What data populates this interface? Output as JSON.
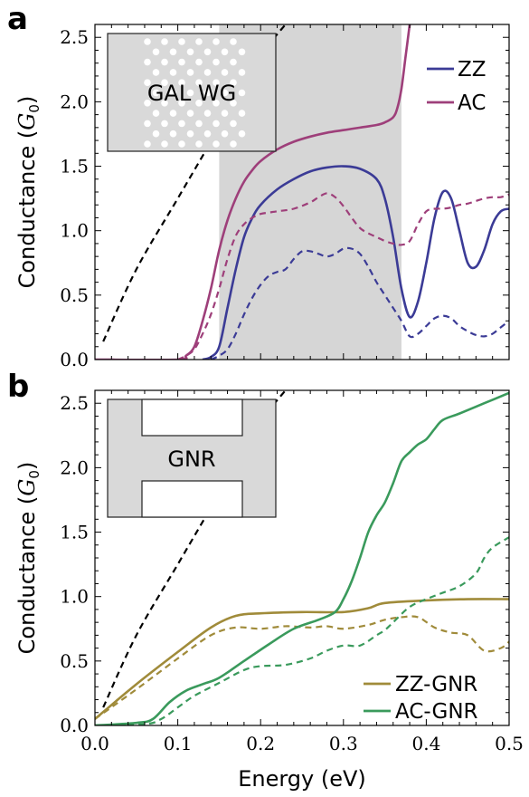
{
  "chart_data": [
    {
      "panel_label": "a",
      "type": "line",
      "xlim": [
        0,
        0.5
      ],
      "ylim": [
        0,
        2.6
      ],
      "ylabel": "Conductance (G0)",
      "ylabel_prefix": "Conductance (",
      "ylabel_symbol": "G",
      "ylabel_subscript": "0",
      "ylabel_suffix": ")",
      "xticks": [
        "0.0",
        "0.1",
        "0.2",
        "0.3",
        "0.4",
        "0.5"
      ],
      "yticks": [
        "0.0",
        "0.5",
        "1.0",
        "1.5",
        "2.0",
        "2.5"
      ],
      "shaded_region": [
        0.15,
        0.37
      ],
      "inset_label": "GAL WG",
      "legend": [
        "ZZ",
        "AC"
      ],
      "series": [
        {
          "name": "ZZ",
          "color": "#3b3b96",
          "style": "solid",
          "x": [
            0.13,
            0.14,
            0.15,
            0.16,
            0.17,
            0.18,
            0.19,
            0.2,
            0.22,
            0.24,
            0.26,
            0.28,
            0.3,
            0.32,
            0.34,
            0.35,
            0.36,
            0.37,
            0.38,
            0.39,
            0.4,
            0.41,
            0.42,
            0.43,
            0.44,
            0.45,
            0.46,
            0.47,
            0.48,
            0.49,
            0.5
          ],
          "y": [
            0.0,
            0.02,
            0.1,
            0.4,
            0.7,
            0.95,
            1.1,
            1.2,
            1.32,
            1.4,
            1.46,
            1.49,
            1.5,
            1.48,
            1.4,
            1.25,
            0.95,
            0.55,
            0.33,
            0.45,
            0.75,
            1.1,
            1.3,
            1.25,
            1.0,
            0.75,
            0.72,
            0.85,
            1.05,
            1.15,
            1.17
          ]
        },
        {
          "name": "ZZ (dashed)",
          "color": "#3b3b96",
          "style": "dashed",
          "x": [
            0.14,
            0.15,
            0.16,
            0.17,
            0.18,
            0.19,
            0.2,
            0.21,
            0.22,
            0.23,
            0.24,
            0.25,
            0.26,
            0.27,
            0.28,
            0.29,
            0.3,
            0.31,
            0.32,
            0.33,
            0.34,
            0.35,
            0.36,
            0.37,
            0.38,
            0.39,
            0.4,
            0.41,
            0.42,
            0.43,
            0.44,
            0.45,
            0.46,
            0.47,
            0.48,
            0.49,
            0.5
          ],
          "y": [
            0.0,
            0.03,
            0.08,
            0.2,
            0.35,
            0.48,
            0.58,
            0.65,
            0.68,
            0.7,
            0.78,
            0.84,
            0.84,
            0.82,
            0.8,
            0.82,
            0.86,
            0.86,
            0.82,
            0.72,
            0.6,
            0.5,
            0.4,
            0.3,
            0.18,
            0.2,
            0.26,
            0.32,
            0.34,
            0.32,
            0.26,
            0.22,
            0.19,
            0.18,
            0.2,
            0.25,
            0.3
          ]
        },
        {
          "name": "AC",
          "color": "#9e3f7a",
          "style": "solid",
          "x": [
            0.0,
            0.1,
            0.11,
            0.12,
            0.13,
            0.14,
            0.15,
            0.16,
            0.17,
            0.18,
            0.19,
            0.2,
            0.22,
            0.24,
            0.26,
            0.28,
            0.3,
            0.32,
            0.34,
            0.35,
            0.36,
            0.365,
            0.37,
            0.375,
            0.38
          ],
          "y": [
            0.0,
            0.0,
            0.03,
            0.1,
            0.3,
            0.55,
            0.85,
            1.08,
            1.25,
            1.38,
            1.47,
            1.54,
            1.63,
            1.69,
            1.73,
            1.76,
            1.78,
            1.8,
            1.82,
            1.84,
            1.88,
            1.95,
            2.1,
            2.35,
            2.6
          ]
        },
        {
          "name": "AC (dashed)",
          "color": "#9e3f7a",
          "style": "dashed",
          "x": [
            0.1,
            0.11,
            0.12,
            0.13,
            0.14,
            0.15,
            0.16,
            0.17,
            0.18,
            0.19,
            0.2,
            0.22,
            0.24,
            0.26,
            0.27,
            0.28,
            0.29,
            0.3,
            0.31,
            0.32,
            0.33,
            0.34,
            0.35,
            0.36,
            0.37,
            0.38,
            0.39,
            0.4,
            0.41,
            0.42,
            0.43,
            0.44,
            0.45,
            0.46,
            0.47,
            0.48,
            0.49,
            0.5
          ],
          "y": [
            0.0,
            0.03,
            0.08,
            0.2,
            0.35,
            0.55,
            0.78,
            0.96,
            1.05,
            1.1,
            1.13,
            1.15,
            1.17,
            1.22,
            1.26,
            1.29,
            1.26,
            1.19,
            1.1,
            1.02,
            0.98,
            0.95,
            0.92,
            0.9,
            0.89,
            0.92,
            1.05,
            1.15,
            1.17,
            1.17,
            1.18,
            1.2,
            1.21,
            1.23,
            1.25,
            1.26,
            1.26,
            1.28
          ]
        },
        {
          "name": "linear (dashed)",
          "color": "#000000",
          "style": "dashed",
          "x": [
            0.01,
            0.05,
            0.1,
            0.15,
            0.2,
            0.23
          ],
          "y": [
            0.14,
            0.7,
            1.25,
            1.8,
            2.35,
            2.6
          ]
        }
      ]
    },
    {
      "panel_label": "b",
      "type": "line",
      "xlim": [
        0,
        0.5
      ],
      "ylim": [
        0,
        2.6
      ],
      "ylabel": "Conductance (G0)",
      "ylabel_prefix": "Conductance (",
      "ylabel_symbol": "G",
      "ylabel_subscript": "0",
      "ylabel_suffix": ")",
      "xlabel": "Energy (eV)",
      "xticks": [
        "0.0",
        "0.1",
        "0.2",
        "0.3",
        "0.4",
        "0.5"
      ],
      "yticks": [
        "0.0",
        "0.5",
        "1.0",
        "1.5",
        "2.0",
        "2.5"
      ],
      "inset_label": "GNR",
      "legend": [
        "ZZ-GNR",
        "AC-GNR"
      ],
      "series": [
        {
          "name": "ZZ-GNR",
          "color": "#a08b3a",
          "style": "solid",
          "x": [
            0.0,
            0.05,
            0.1,
            0.14,
            0.17,
            0.2,
            0.25,
            0.3,
            0.33,
            0.35,
            0.4,
            0.45,
            0.5
          ],
          "y": [
            0.05,
            0.32,
            0.57,
            0.76,
            0.85,
            0.87,
            0.88,
            0.88,
            0.91,
            0.95,
            0.97,
            0.98,
            0.98
          ]
        },
        {
          "name": "ZZ-GNR (dashed)",
          "color": "#a08b3a",
          "style": "dashed",
          "x": [
            0.0,
            0.05,
            0.1,
            0.14,
            0.17,
            0.2,
            0.23,
            0.26,
            0.28,
            0.3,
            0.33,
            0.35,
            0.37,
            0.39,
            0.41,
            0.43,
            0.45,
            0.47,
            0.49,
            0.5
          ],
          "y": [
            0.05,
            0.28,
            0.52,
            0.7,
            0.76,
            0.75,
            0.77,
            0.76,
            0.77,
            0.75,
            0.78,
            0.82,
            0.84,
            0.84,
            0.76,
            0.72,
            0.7,
            0.58,
            0.6,
            0.65
          ]
        },
        {
          "name": "AC-GNR",
          "color": "#3a9a5c",
          "style": "solid",
          "x": [
            0.0,
            0.05,
            0.07,
            0.09,
            0.11,
            0.13,
            0.15,
            0.18,
            0.21,
            0.24,
            0.27,
            0.29,
            0.3,
            0.31,
            0.32,
            0.33,
            0.34,
            0.35,
            0.36,
            0.37,
            0.38,
            0.39,
            0.4,
            0.41,
            0.42,
            0.44,
            0.47,
            0.5
          ],
          "y": [
            0.0,
            0.02,
            0.05,
            0.18,
            0.27,
            0.32,
            0.37,
            0.5,
            0.63,
            0.75,
            0.82,
            0.88,
            0.98,
            1.12,
            1.3,
            1.5,
            1.63,
            1.73,
            1.88,
            2.05,
            2.12,
            2.18,
            2.22,
            2.3,
            2.37,
            2.42,
            2.5,
            2.58
          ]
        },
        {
          "name": "AC-GNR (dashed)",
          "color": "#3a9a5c",
          "style": "dashed",
          "x": [
            0.0,
            0.06,
            0.08,
            0.1,
            0.12,
            0.15,
            0.18,
            0.2,
            0.23,
            0.26,
            0.28,
            0.3,
            0.32,
            0.34,
            0.35,
            0.36,
            0.38,
            0.4,
            0.42,
            0.44,
            0.46,
            0.47,
            0.48,
            0.5
          ],
          "y": [
            0.0,
            0.01,
            0.05,
            0.14,
            0.23,
            0.33,
            0.43,
            0.46,
            0.47,
            0.52,
            0.58,
            0.62,
            0.62,
            0.7,
            0.74,
            0.8,
            0.92,
            0.98,
            1.03,
            1.08,
            1.18,
            1.3,
            1.38,
            1.46
          ]
        },
        {
          "name": "linear (dashed)",
          "color": "#000000",
          "style": "dashed",
          "x": [
            0.01,
            0.05,
            0.1,
            0.15,
            0.2,
            0.23
          ],
          "y": [
            0.14,
            0.7,
            1.25,
            1.8,
            2.35,
            2.6
          ]
        }
      ]
    }
  ]
}
